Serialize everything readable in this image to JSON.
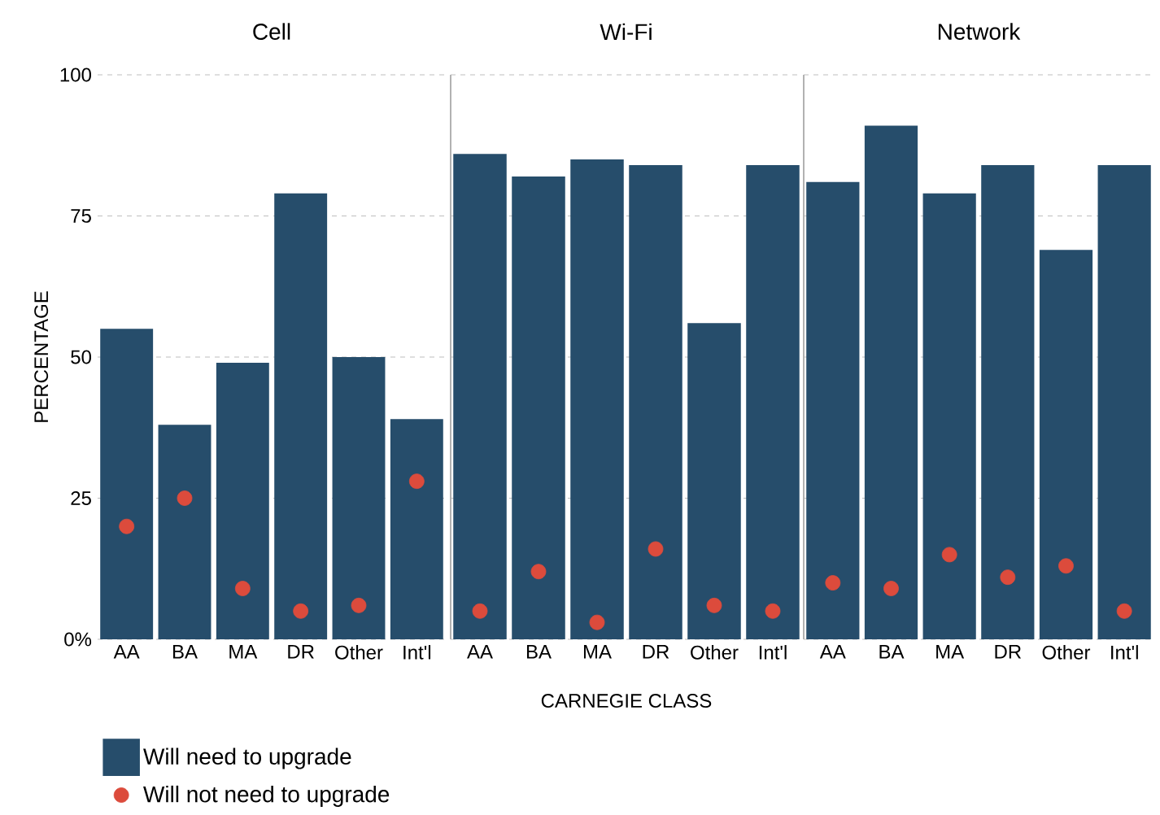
{
  "chart_data": [
    {
      "type": "bar",
      "title": "Cell",
      "ylabel": "PERCENTAGE",
      "categories": [
        "AA",
        "BA",
        "MA",
        "DR",
        "Other",
        "Int'l"
      ],
      "ylim": [
        0,
        100
      ],
      "yticks": [
        {
          "value": 0,
          "label": "0%"
        },
        25,
        50,
        75,
        100
      ],
      "grid": "y",
      "legend": "bottom",
      "series": [
        {
          "name": "Will need to upgrade",
          "color": "#264d6b",
          "values": [
            55,
            38,
            49,
            79,
            50,
            39
          ]
        },
        {
          "name": "Will not need to upgrade",
          "type": "scatter",
          "color": "#dc4b3c",
          "values": [
            20,
            25,
            9,
            5,
            6,
            28
          ]
        }
      ]
    },
    {
      "type": "bar",
      "title": "Wi-Fi",
      "xlabel": "CARNEGIE CLASS",
      "categories": [
        "AA",
        "BA",
        "MA",
        "DR",
        "Other",
        "Int'l"
      ],
      "ylim": [
        0,
        100
      ],
      "yticks": [
        0,
        25,
        50,
        75,
        100
      ],
      "grid": "y",
      "tick_labels": "x",
      "series": [
        {
          "color": "#264d6b",
          "values": [
            86,
            82,
            85,
            84,
            56,
            84
          ]
        },
        {
          "type": "scatter",
          "color": "#dc4b3c",
          "values": [
            5,
            12,
            3,
            16,
            6,
            5
          ]
        }
      ]
    },
    {
      "type": "bar",
      "title": "Network",
      "categories": [
        "AA",
        "BA",
        "MA",
        "DR",
        "Other",
        "Int'l"
      ],
      "ylim": [
        0,
        100
      ],
      "yticks": [
        0,
        25,
        50,
        75,
        100
      ],
      "grid": "y",
      "tick_labels": "x",
      "series": [
        {
          "color": "#264d6b",
          "values": [
            81,
            91,
            79,
            84,
            69,
            84
          ]
        },
        {
          "type": "scatter",
          "color": "#dc4b3c",
          "values": [
            10,
            9,
            15,
            11,
            13,
            5
          ]
        }
      ]
    }
  ]
}
